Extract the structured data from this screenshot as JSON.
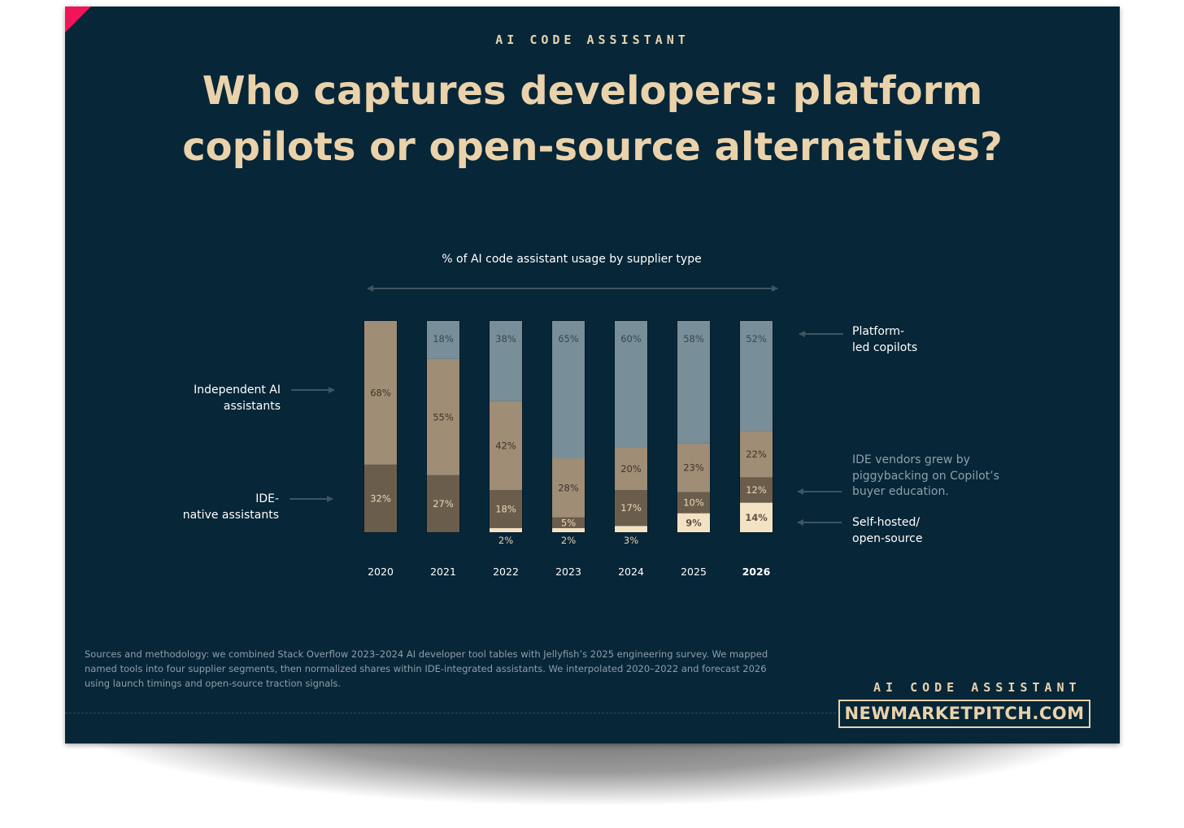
{
  "kicker": "AI CODE ASSISTANT",
  "title_line1": "Who captures developers: platform",
  "title_line2": "copilots or open-source alternatives?",
  "colors": {
    "background": "#072638",
    "accent": "#f0145a",
    "title": "#ead2ab",
    "platform": "#788f99",
    "independent": "#a08d76",
    "ide_native": "#6b5d4c",
    "self_hosted": "#f3e2c3"
  },
  "labels": {
    "independent_line1": "Independent AI",
    "independent_line2": "assistants",
    "ide_line1": "IDE-",
    "ide_line2": "native assistants",
    "platform_line1": "Platform-",
    "platform_line2": "led copilots",
    "self_line1": "Self-hosted/",
    "self_line2": "open-source",
    "note_line1": "IDE vendors grew by",
    "note_line2": "piggybacking on Copilot’s",
    "note_line3": "buyer education."
  },
  "chart_data": {
    "type": "bar",
    "stacked": true,
    "title": "% of AI code assistant usage by supplier type",
    "categories": [
      "2020",
      "2021",
      "2022",
      "2023",
      "2024",
      "2025",
      "2026"
    ],
    "highlight_category": "2026",
    "series": [
      {
        "name": "Self-hosted/ open-source",
        "values": [
          0,
          0,
          2,
          2,
          3,
          9,
          14
        ]
      },
      {
        "name": "IDE- native assistants",
        "values": [
          32,
          27,
          18,
          5,
          17,
          10,
          12
        ]
      },
      {
        "name": "Independent AI assistants",
        "values": [
          68,
          55,
          42,
          28,
          20,
          23,
          22
        ]
      },
      {
        "name": "Platform- led copilots",
        "values": [
          0,
          18,
          38,
          65,
          60,
          58,
          52
        ]
      }
    ],
    "ylim": [
      0,
      100
    ],
    "grid": false,
    "legend": "direct labels"
  },
  "sources_line1": "Sources and methodology: we combined Stack Overflow 2023–2024 AI developer tool tables with Jellyfish’s 2025 engineering survey. We mapped",
  "sources_line2": "named tools into four supplier segments, then normalized shares within IDE-integrated assistants. We interpolated 2020–2022 and forecast 2026",
  "sources_line3": "using launch timings and open-source traction signals.",
  "brand": "NEWMARKETPITCH.COM"
}
